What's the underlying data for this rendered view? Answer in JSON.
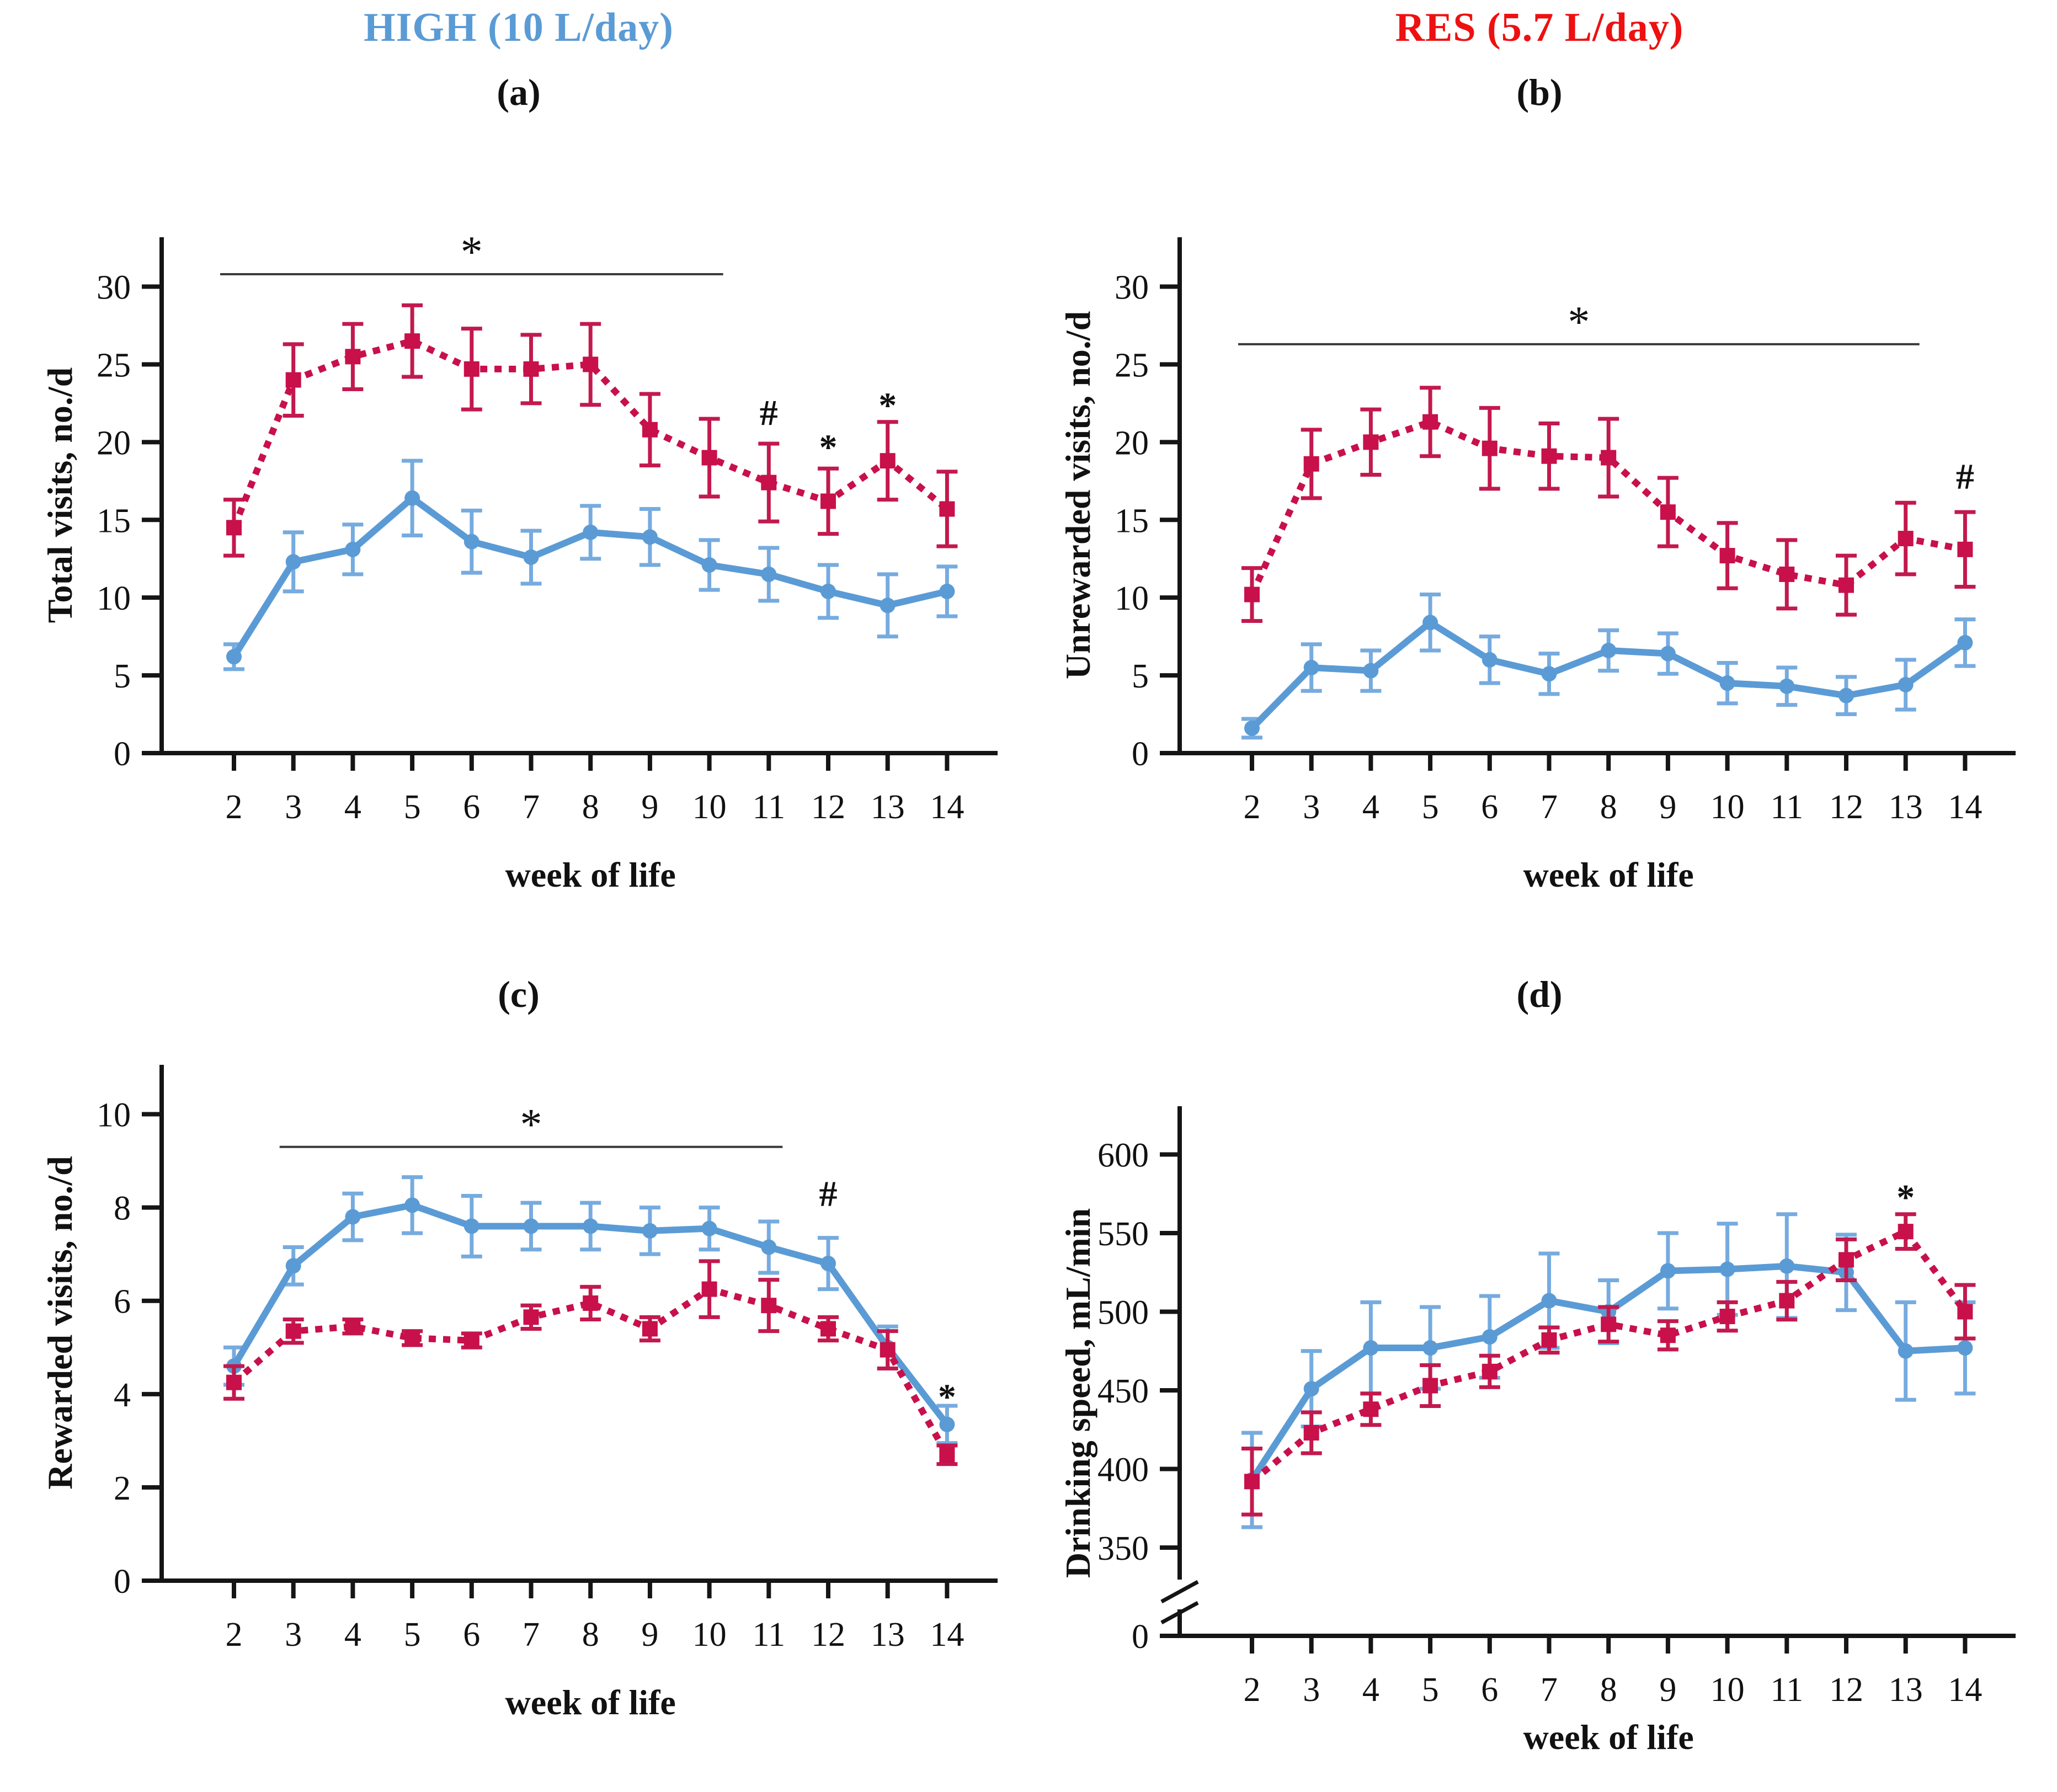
{
  "header": {
    "left_title": "HIGH (10 L/day)",
    "right_title": "RES (5.7 L/day)",
    "left_title_color": "#5B9BD5",
    "right_title_color": "#EE1111"
  },
  "panels": {
    "a_label": "(a)",
    "b_label": "(b)",
    "c_label": "(c)",
    "d_label": "(d)"
  },
  "chart_data": [
    {
      "id": "a",
      "type": "line",
      "panel": "(a)",
      "xlabel": "week of life",
      "ylabel": "Total visits, no./d",
      "x": [
        2,
        3,
        4,
        5,
        6,
        7,
        8,
        9,
        10,
        11,
        12,
        13,
        14
      ],
      "ylim": [
        0,
        33
      ],
      "yticks": [
        0,
        5,
        10,
        15,
        20,
        25,
        30
      ],
      "axis_break": false,
      "legend": "none",
      "grid": false,
      "series": [
        {
          "name": "HIGH (10 L/day)",
          "key": "high",
          "color": "#5B9BD5",
          "err_color": "#76ABDF",
          "marker": "circle",
          "line_style": "solid",
          "values": [
            6.2,
            12.3,
            13.1,
            16.4,
            13.6,
            12.6,
            14.2,
            13.9,
            12.1,
            11.5,
            10.4,
            9.5,
            10.4
          ],
          "err": [
            0.8,
            1.9,
            1.6,
            2.4,
            2.0,
            1.7,
            1.7,
            1.8,
            1.6,
            1.7,
            1.7,
            2.0,
            1.6
          ]
        },
        {
          "name": "RES (5.7 L/day)",
          "key": "res",
          "color": "#C8104B",
          "err_color": "#C2194E",
          "marker": "square",
          "line_style": "dotted",
          "values": [
            14.5,
            24.0,
            25.5,
            26.5,
            24.7,
            24.7,
            25.0,
            20.8,
            19.0,
            17.4,
            16.2,
            18.8,
            15.7
          ],
          "err": [
            1.8,
            2.3,
            2.1,
            2.3,
            2.6,
            2.2,
            2.6,
            2.3,
            2.5,
            2.5,
            2.1,
            2.5,
            2.4
          ]
        }
      ],
      "sig_line": {
        "x_from": 2,
        "x_to": 10,
        "y": 30.8,
        "label": "*"
      },
      "annotations": [
        {
          "x": 11,
          "y": 21.9,
          "text": "#"
        },
        {
          "x": 12,
          "y": 20.6,
          "text": "*"
        },
        {
          "x": 13,
          "y": 23.3,
          "text": "*"
        }
      ]
    },
    {
      "id": "b",
      "type": "line",
      "panel": "(b)",
      "xlabel": "week of life",
      "ylabel": "Unrewarded visits, no./d",
      "x": [
        2,
        3,
        4,
        5,
        6,
        7,
        8,
        9,
        10,
        11,
        12,
        13,
        14
      ],
      "ylim": [
        0,
        33
      ],
      "yticks": [
        0,
        5,
        10,
        15,
        20,
        25,
        30
      ],
      "axis_break": false,
      "legend": "none",
      "grid": false,
      "series": [
        {
          "name": "HIGH (10 L/day)",
          "key": "high",
          "color": "#5B9BD5",
          "err_color": "#76ABDF",
          "marker": "circle",
          "line_style": "solid",
          "values": [
            1.6,
            5.5,
            5.3,
            8.4,
            6.0,
            5.1,
            6.6,
            6.4,
            4.5,
            4.3,
            3.7,
            4.4,
            7.1
          ],
          "err": [
            0.6,
            1.5,
            1.3,
            1.8,
            1.5,
            1.3,
            1.3,
            1.3,
            1.3,
            1.2,
            1.2,
            1.6,
            1.5
          ]
        },
        {
          "name": "RES (5.7 L/day)",
          "key": "res",
          "color": "#C8104B",
          "err_color": "#C2194E",
          "marker": "square",
          "line_style": "dotted",
          "values": [
            10.2,
            18.6,
            20.0,
            21.3,
            19.6,
            19.1,
            19.0,
            15.5,
            12.7,
            11.5,
            10.8,
            13.8,
            13.1
          ],
          "err": [
            1.7,
            2.2,
            2.1,
            2.2,
            2.6,
            2.1,
            2.5,
            2.2,
            2.1,
            2.2,
            1.9,
            2.3,
            2.4
          ]
        }
      ],
      "sig_line": {
        "x_from": 2,
        "x_to": 13,
        "y": 26.3,
        "label": "*"
      },
      "annotations": [
        {
          "x": 14,
          "y": 17.8,
          "text": "#"
        }
      ]
    },
    {
      "id": "c",
      "type": "line",
      "panel": "(c)",
      "xlabel": "week of life",
      "ylabel": "Rewarded visits, no./d",
      "x": [
        2,
        3,
        4,
        5,
        6,
        7,
        8,
        9,
        10,
        11,
        12,
        13,
        14
      ],
      "ylim": [
        0,
        11
      ],
      "yticks": [
        0,
        2,
        4,
        6,
        8,
        10
      ],
      "axis_break": false,
      "legend": "none",
      "grid": false,
      "series": [
        {
          "name": "HIGH (10 L/day)",
          "key": "high",
          "color": "#5B9BD5",
          "err_color": "#76ABDF",
          "marker": "circle",
          "line_style": "solid",
          "values": [
            4.6,
            6.75,
            7.8,
            8.05,
            7.6,
            7.6,
            7.6,
            7.5,
            7.55,
            7.15,
            6.8,
            5.0,
            3.35
          ],
          "err": [
            0.4,
            0.4,
            0.5,
            0.6,
            0.65,
            0.5,
            0.5,
            0.5,
            0.45,
            0.55,
            0.55,
            0.45,
            0.4
          ]
        },
        {
          "name": "RES (5.7 L/day)",
          "key": "res",
          "color": "#C8104B",
          "err_color": "#C2194E",
          "marker": "square",
          "line_style": "dotted",
          "values": [
            4.25,
            5.35,
            5.45,
            5.2,
            5.15,
            5.65,
            5.95,
            5.4,
            6.25,
            5.9,
            5.4,
            4.95,
            2.7
          ],
          "err": [
            0.35,
            0.25,
            0.15,
            0.15,
            0.15,
            0.25,
            0.35,
            0.25,
            0.6,
            0.55,
            0.25,
            0.4,
            0.2
          ]
        }
      ],
      "sig_line": {
        "x_from": 3,
        "x_to": 11,
        "y": 9.3,
        "label": "*"
      },
      "annotations": [
        {
          "x": 12,
          "y": 8.3,
          "text": "#"
        },
        {
          "x": 14,
          "y": 4.25,
          "text": "*"
        }
      ]
    },
    {
      "id": "d",
      "type": "line",
      "panel": "(d)",
      "xlabel": "week of life",
      "ylabel": "Drinking speed, mL/min",
      "x": [
        2,
        3,
        4,
        5,
        6,
        7,
        8,
        9,
        10,
        11,
        12,
        13,
        14
      ],
      "ylim": [
        340,
        620
      ],
      "yticks": [
        0,
        350,
        400,
        450,
        500,
        550,
        600
      ],
      "axis_break": true,
      "legend": "none",
      "grid": false,
      "series": [
        {
          "name": "HIGH (10 L/day)",
          "key": "high",
          "color": "#5B9BD5",
          "err_color": "#76ABDF",
          "marker": "circle",
          "line_style": "solid",
          "values": [
            393,
            451,
            477,
            477,
            484,
            507,
            500,
            526,
            527,
            529,
            525,
            475,
            477
          ],
          "err": [
            30,
            24,
            29,
            26,
            26,
            30,
            20,
            24,
            29,
            33,
            24,
            31,
            29
          ]
        },
        {
          "name": "RES (5.7 L/day)",
          "key": "res",
          "color": "#C8104B",
          "err_color": "#C2194E",
          "marker": "square",
          "line_style": "dotted",
          "values": [
            392,
            423,
            438,
            453,
            462,
            482,
            492,
            485,
            497,
            507,
            533,
            551,
            500
          ],
          "err": [
            21,
            13,
            10,
            13,
            10,
            8,
            11,
            9,
            9,
            12,
            13,
            11,
            17
          ]
        }
      ],
      "sig_line": null,
      "annotations": [
        {
          "x": 13,
          "y": 582,
          "text": "*"
        }
      ]
    }
  ]
}
